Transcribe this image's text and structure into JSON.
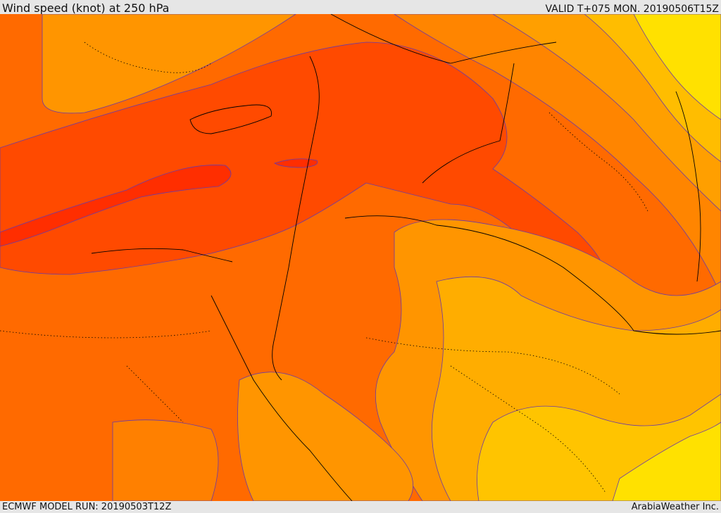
{
  "header": {
    "title": "Wind speed (knot) at 250 hPa",
    "valid": "VALID T+075 MON. 20190506T15Z"
  },
  "footer": {
    "model_run": "ECMWF MODEL RUN: 20190503T12Z",
    "credit": "ArabiaWeather Inc."
  },
  "colors": {
    "fill_slow": "#ffe100",
    "fill_low": "#ffc400",
    "fill_mid_low": "#ffad00",
    "fill_mid": "#ff9500",
    "fill_mid_high": "#ff7b00",
    "fill_high": "#ff6200",
    "fill_very_high": "#ff4a00",
    "fill_jet_core": "#ff2e00",
    "contour_line": "#6a3aa8",
    "coastline": "#000000",
    "background": "#e6e6e6"
  }
}
